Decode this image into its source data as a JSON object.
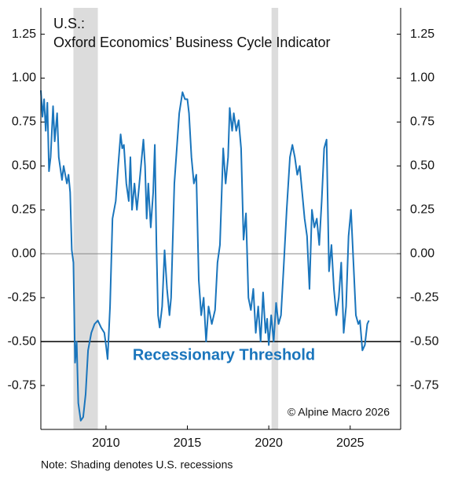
{
  "chart_data": {
    "type": "line",
    "title": "U.S.:",
    "subtitle": "Oxford Economics’ Business Cycle Indicator",
    "annotations": [
      "Recessionary Threshold",
      "© Alpine Macro 2026"
    ],
    "note": "Note: Shading denotes U.S. recessions",
    "xlim": [
      2006,
      2028.1
    ],
    "xticks": [
      2010,
      2015,
      2020,
      2025
    ],
    "ylim": [
      -1.0,
      1.4
    ],
    "yticks": [
      {
        "value": 1.25,
        "label": "1.25"
      },
      {
        "value": 1,
        "label": "1.00"
      },
      0.75,
      {
        "value": 0.5,
        "label": "0.50"
      },
      0.25,
      {
        "value": 0,
        "label": "0.00"
      },
      -0.25,
      {
        "value": -0.5,
        "label": "-0.50"
      },
      -0.75
    ],
    "threshold": -0.5,
    "recessions": [
      [
        2008.0,
        2009.5
      ],
      [
        2020.17,
        2020.58
      ]
    ],
    "x": [
      2006.0,
      2006.1,
      2006.2,
      2006.3,
      2006.4,
      2006.5,
      2006.6,
      2006.75,
      2006.85,
      2007.0,
      2007.1,
      2007.3,
      2007.4,
      2007.6,
      2007.7,
      2007.8,
      2007.9,
      2008.0,
      2008.1,
      2008.2,
      2008.3,
      2008.45,
      2008.6,
      2008.75,
      2008.9,
      2009.1,
      2009.3,
      2009.5,
      2009.7,
      2009.9,
      2010.0,
      2010.1,
      2010.25,
      2010.4,
      2010.6,
      2010.75,
      2010.9,
      2011.0,
      2011.1,
      2011.25,
      2011.4,
      2011.5,
      2011.6,
      2011.75,
      2011.9,
      2012.1,
      2012.3,
      2012.4,
      2012.5,
      2012.6,
      2012.75,
      2012.9,
      2013.0,
      2013.1,
      2013.2,
      2013.3,
      2013.45,
      2013.6,
      2013.75,
      2013.9,
      2014.0,
      2014.2,
      2014.35,
      2014.5,
      2014.7,
      2014.85,
      2015.0,
      2015.1,
      2015.25,
      2015.4,
      2015.55,
      2015.7,
      2015.85,
      2016.0,
      2016.15,
      2016.3,
      2016.5,
      2016.7,
      2016.85,
      2017.0,
      2017.2,
      2017.35,
      2017.5,
      2017.6,
      2017.75,
      2017.85,
      2018.0,
      2018.15,
      2018.3,
      2018.45,
      2018.6,
      2018.75,
      2018.9,
      2019.05,
      2019.2,
      2019.35,
      2019.5,
      2019.65,
      2019.8,
      2019.9,
      2020.0,
      2020.15,
      2020.3,
      2020.45,
      2020.6,
      2020.75,
      2020.9,
      2021.1,
      2021.3,
      2021.45,
      2021.6,
      2021.75,
      2021.9,
      2022.05,
      2022.2,
      2022.35,
      2022.5,
      2022.65,
      2022.8,
      2022.95,
      2023.1,
      2023.25,
      2023.4,
      2023.55,
      2023.7,
      2023.85,
      2024.0,
      2024.15,
      2024.3,
      2024.45,
      2024.6,
      2024.75,
      2024.9,
      2025.05,
      2025.2,
      2025.35,
      2025.5,
      2025.6,
      2025.75,
      2025.9,
      2026.05,
      2026.15
    ],
    "series": [
      {
        "name": "Business Cycle Indicator",
        "color": "#1a75bc",
        "values": [
          0.93,
          0.78,
          0.88,
          0.7,
          0.86,
          0.47,
          0.55,
          0.84,
          0.64,
          0.8,
          0.55,
          0.42,
          0.5,
          0.4,
          0.45,
          0.35,
          0.02,
          -0.05,
          -0.62,
          -0.5,
          -0.85,
          -0.95,
          -0.93,
          -0.8,
          -0.55,
          -0.45,
          -0.4,
          -0.38,
          -0.42,
          -0.45,
          -0.52,
          -0.6,
          -0.3,
          0.2,
          0.3,
          0.5,
          0.68,
          0.6,
          0.62,
          0.4,
          0.3,
          0.55,
          0.25,
          0.4,
          0.25,
          0.45,
          0.65,
          0.5,
          0.2,
          0.4,
          0.15,
          0.35,
          0.62,
          0.05,
          -0.35,
          -0.42,
          -0.3,
          0.02,
          -0.2,
          -0.35,
          -0.25,
          0.4,
          0.6,
          0.8,
          0.92,
          0.88,
          0.88,
          0.8,
          0.55,
          0.4,
          0.45,
          -0.15,
          -0.35,
          -0.25,
          -0.5,
          -0.3,
          -0.4,
          -0.32,
          -0.05,
          0.05,
          0.6,
          0.4,
          0.55,
          0.83,
          0.7,
          0.8,
          0.7,
          0.76,
          0.6,
          0.08,
          0.23,
          -0.25,
          -0.32,
          -0.2,
          -0.45,
          -0.3,
          -0.5,
          -0.22,
          -0.45,
          -0.37,
          -0.52,
          -0.35,
          -0.5,
          -0.28,
          -0.4,
          -0.35,
          -0.1,
          0.25,
          0.55,
          0.62,
          0.55,
          0.45,
          0.5,
          0.35,
          0.2,
          0.1,
          -0.2,
          0.25,
          0.15,
          0.2,
          0.05,
          0.3,
          0.6,
          0.65,
          -0.1,
          0.05,
          -0.2,
          -0.35,
          -0.25,
          -0.05,
          -0.45,
          -0.3,
          0.1,
          0.25,
          -0.05,
          -0.35,
          -0.4,
          -0.38,
          -0.55,
          -0.52,
          -0.4,
          -0.38
        ]
      }
    ]
  }
}
